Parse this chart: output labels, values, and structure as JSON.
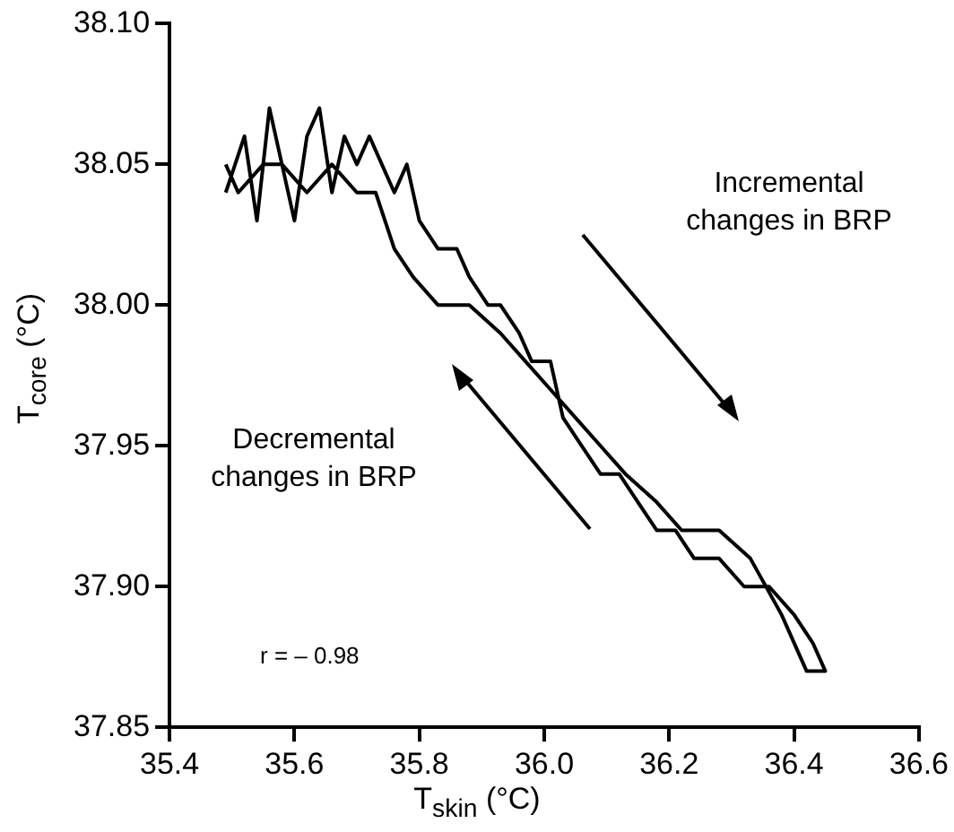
{
  "chart_data": {
    "type": "line",
    "xlabel": "T$_{skin}$ (°C)",
    "ylabel": "T$_{core}$ (°C)",
    "annotations": [
      "Incremental changes in BRP",
      "Decremental changes in BRP",
      "r = – 0.98"
    ],
    "xlim": [
      35.4,
      36.6
    ],
    "xticks": [
      {
        "value": 35.4,
        "label": "35.4"
      },
      {
        "value": 35.6,
        "label": "35.6"
      },
      {
        "value": 35.8,
        "label": "35.8"
      },
      {
        "value": 36.0,
        "label": "36.0"
      },
      {
        "value": 36.2,
        "label": "36.2"
      },
      {
        "value": 36.4,
        "label": "36.4"
      },
      {
        "value": 36.6,
        "label": "36.6"
      }
    ],
    "ylim": [
      37.85,
      38.1
    ],
    "yticks": [
      {
        "value": 37.85,
        "label": "37.85"
      },
      {
        "value": 37.9,
        "label": "37.90"
      },
      {
        "value": 37.95,
        "label": "37.95"
      },
      {
        "value": 38.0,
        "label": "38.00"
      },
      {
        "value": 38.05,
        "label": "38.05"
      },
      {
        "value": 38.1,
        "label": "38.10"
      }
    ],
    "grid": false,
    "legend": false,
    "marker": "none",
    "line_style": "solid",
    "series": [
      {
        "color": "#000000",
        "x": [
          35.49,
          35.52,
          35.54,
          35.56,
          35.58,
          35.6,
          35.62,
          35.64,
          35.66,
          35.68,
          35.7,
          35.72,
          35.74,
          35.76,
          35.78,
          35.8,
          35.83,
          35.86,
          35.88,
          35.91,
          35.93,
          35.96,
          35.98,
          36.01,
          36.03,
          36.06,
          36.09,
          36.12,
          36.15,
          36.18,
          36.21,
          36.24,
          36.28,
          36.32,
          36.36,
          36.4,
          36.43,
          36.45,
          36.42,
          36.38,
          36.33,
          36.28,
          36.22,
          36.18,
          36.13,
          36.09,
          36.05,
          36.01,
          35.97,
          35.93,
          35.88,
          35.83,
          35.79,
          35.76,
          35.73,
          35.7,
          35.66,
          35.62,
          35.58,
          35.55,
          35.51,
          35.49
        ],
        "values": [
          38.04,
          38.06,
          38.03,
          38.07,
          38.05,
          38.03,
          38.06,
          38.07,
          38.04,
          38.06,
          38.05,
          38.06,
          38.05,
          38.04,
          38.05,
          38.03,
          38.02,
          38.02,
          38.01,
          38.0,
          38.0,
          37.99,
          37.98,
          37.98,
          37.96,
          37.95,
          37.94,
          37.94,
          37.93,
          37.92,
          37.92,
          37.91,
          37.91,
          37.9,
          37.9,
          37.89,
          37.88,
          37.87,
          37.87,
          37.89,
          37.91,
          37.92,
          37.92,
          37.93,
          37.94,
          37.95,
          37.96,
          37.97,
          37.98,
          37.99,
          38.0,
          38.0,
          38.01,
          38.02,
          38.04,
          38.04,
          38.05,
          38.04,
          38.05,
          38.05,
          38.04,
          38.05
        ]
      }
    ]
  }
}
